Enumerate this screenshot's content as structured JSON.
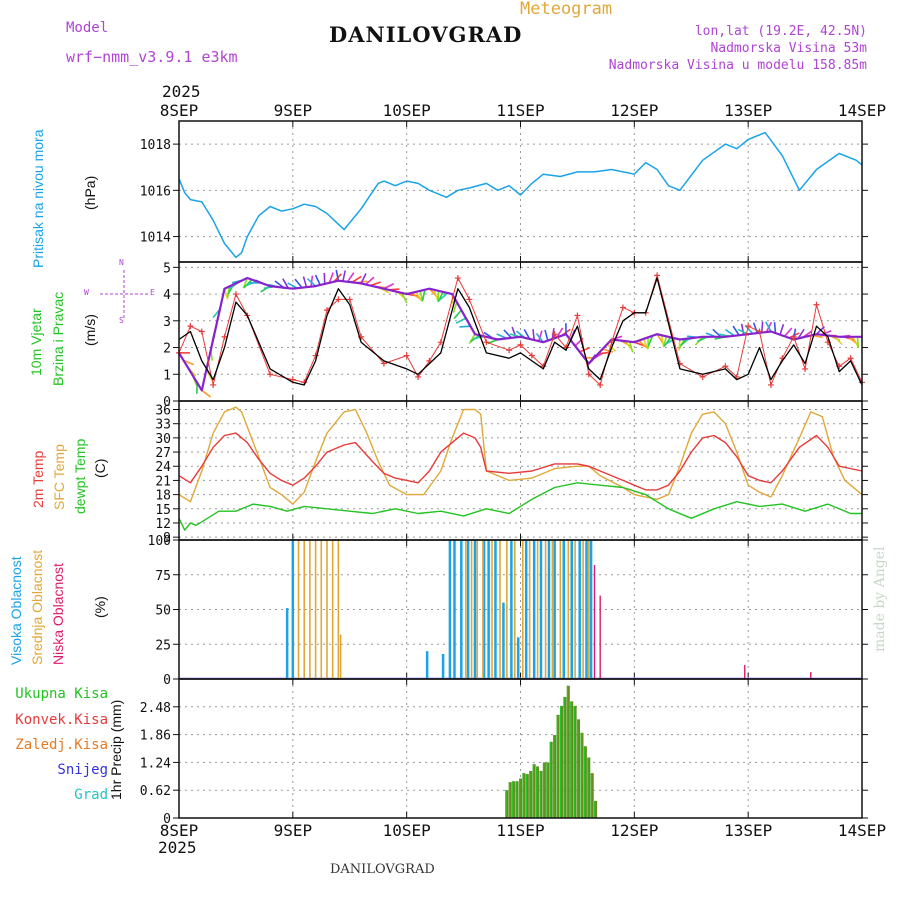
{
  "header": {
    "model_label": "Model",
    "model_name": "wrf−nmm_v3.9.1  e3km",
    "title": "DANILOVGRAD",
    "subtitle": "Meteogram",
    "lonlat": "lon,lat (19.2E, 42.5N)",
    "elevation": "Nadmorska Visina 53m",
    "model_elevation": "Nadmorska Visina u modelu 158.85m",
    "year_top": "2025",
    "year_bottom": "2025",
    "footer": "DANILOVGRAD",
    "credit": "made by Angel"
  },
  "colors": {
    "pressure": "#1aa3e8",
    "temp2m": "#e83a3a",
    "sfc": "#e0a838",
    "dewpt": "#22c322",
    "wind_avg": "#000000",
    "wind_gust": "#e83a3a",
    "wind_dir": "#8822cc",
    "high_cloud": "#1aa3e8",
    "mid_cloud": "#e0a838",
    "low_cloud": "#e01a6a",
    "total_precip": "#22c322",
    "conv_precip": "#e83a3a",
    "frozen_precip": "#e87a22",
    "snow": "#3333dd",
    "hail": "#22c3c3",
    "label_magenta": "#b044d4"
  },
  "x_ticks": [
    "8SEP",
    "9SEP",
    "10SEP",
    "11SEP",
    "12SEP",
    "13SEP",
    "14SEP"
  ],
  "panel_labels": {
    "pressure": [
      "Pritisak na nivou mora"
    ],
    "pressure_unit": "(hPa)",
    "wind": [
      "10m Vjetar",
      "Brzina i Pravac"
    ],
    "wind_unit": "(m/s)",
    "wind_dir_legend": [
      "W",
      "E",
      "N",
      "S"
    ],
    "temp": [
      "2m Temp",
      "SFC Temp",
      "dewpt Temp"
    ],
    "temp_unit": "(C)",
    "cloud": [
      "Visoka Oblacnost",
      "Srednja Oblacnost",
      "Niska Oblacnost"
    ],
    "cloud_unit": "(%)",
    "precip_legend": [
      "Ukupna Kisa",
      "Konvek.Kisa",
      "Zaledj.Kisa",
      "Snijeg",
      "Grad"
    ],
    "precip_unit": "1hr Precip (mm)"
  },
  "chart_data": [
    {
      "type": "line",
      "name": "pressure",
      "title": "Pritisak na nivou mora",
      "ylabel": "(hPa)",
      "ylim": [
        1012.9,
        1019.0
      ],
      "yticks": [
        1014,
        1016,
        1018
      ],
      "x_days": [
        0,
        0.05,
        0.1,
        0.2,
        0.3,
        0.4,
        0.5,
        0.55,
        0.6,
        0.7,
        0.8,
        0.9,
        1.0,
        1.1,
        1.2,
        1.3,
        1.45,
        1.6,
        1.75,
        1.8,
        1.9,
        2.0,
        2.1,
        2.2,
        2.35,
        2.45,
        2.55,
        2.7,
        2.8,
        2.9,
        3.0,
        3.1,
        3.2,
        3.35,
        3.5,
        3.65,
        3.8,
        4.0,
        4.1,
        4.2,
        4.3,
        4.4,
        4.6,
        4.8,
        4.9,
        5.0,
        5.15,
        5.3,
        5.45,
        5.6,
        5.8,
        5.95,
        6.0
      ],
      "values": [
        1016.5,
        1015.9,
        1015.6,
        1015.5,
        1014.7,
        1013.7,
        1013.1,
        1013.3,
        1014.0,
        1014.9,
        1015.3,
        1015.1,
        1015.2,
        1015.4,
        1015.3,
        1015.0,
        1014.3,
        1015.2,
        1016.3,
        1016.4,
        1016.2,
        1016.4,
        1016.3,
        1016.0,
        1015.7,
        1016.0,
        1016.1,
        1016.3,
        1016.0,
        1016.2,
        1015.8,
        1016.3,
        1016.7,
        1016.6,
        1016.8,
        1016.8,
        1016.9,
        1016.7,
        1017.2,
        1016.9,
        1016.2,
        1016.0,
        1017.3,
        1018.0,
        1017.8,
        1018.2,
        1018.5,
        1017.5,
        1016.0,
        1016.9,
        1017.6,
        1017.3,
        1017.1
      ]
    },
    {
      "type": "line",
      "name": "wind",
      "title": "10m Vjetar Brzina i Pravac",
      "ylabel": "(m/s)",
      "ylim": [
        0,
        5.2
      ],
      "yticks": [
        0,
        1,
        2,
        3,
        4,
        5
      ],
      "series": [
        {
          "name": "avg speed",
          "x_days": [
            0,
            0.1,
            0.2,
            0.3,
            0.4,
            0.5,
            0.6,
            0.8,
            1.0,
            1.1,
            1.2,
            1.3,
            1.4,
            1.5,
            1.6,
            1.8,
            2.0,
            2.1,
            2.2,
            2.3,
            2.45,
            2.55,
            2.7,
            2.9,
            3.0,
            3.1,
            3.2,
            3.3,
            3.4,
            3.5,
            3.6,
            3.7,
            3.8,
            3.9,
            4.0,
            4.1,
            4.2,
            4.4,
            4.6,
            4.8,
            4.9,
            5.0,
            5.1,
            5.2,
            5.3,
            5.4,
            5.5,
            5.6,
            5.7,
            5.8,
            5.9,
            6.0
          ],
          "values": [
            2.3,
            2.6,
            1.5,
            0.8,
            2.0,
            3.7,
            3.2,
            1.2,
            0.7,
            0.6,
            1.5,
            3.2,
            4.2,
            3.6,
            2.2,
            1.5,
            1.2,
            1.0,
            1.4,
            1.8,
            4.2,
            3.5,
            1.8,
            1.6,
            1.8,
            1.5,
            1.2,
            2.2,
            1.9,
            2.8,
            1.2,
            0.8,
            2.0,
            3.0,
            3.3,
            3.3,
            4.6,
            1.2,
            1.0,
            1.2,
            0.8,
            1.0,
            2.0,
            0.8,
            1.5,
            2.1,
            1.4,
            2.8,
            2.4,
            1.1,
            1.5,
            0.6
          ]
        },
        {
          "name": "gust",
          "x_days": [
            0,
            0.1,
            0.2,
            0.3,
            0.4,
            0.5,
            0.6,
            0.8,
            1.0,
            1.1,
            1.2,
            1.3,
            1.4,
            1.5,
            1.6,
            1.8,
            2.0,
            2.1,
            2.2,
            2.3,
            2.45,
            2.55,
            2.7,
            2.9,
            3.0,
            3.1,
            3.2,
            3.3,
            3.4,
            3.5,
            3.6,
            3.7,
            3.8,
            3.9,
            4.0,
            4.1,
            4.2,
            4.4,
            4.6,
            4.8,
            4.9,
            5.0,
            5.1,
            5.2,
            5.3,
            5.4,
            5.5,
            5.6,
            5.7,
            5.8,
            5.9,
            6.0
          ],
          "values": [
            1.8,
            2.8,
            2.6,
            0.6,
            2.4,
            4.0,
            3.2,
            1.0,
            0.8,
            0.7,
            1.7,
            3.4,
            3.8,
            3.8,
            2.4,
            1.4,
            1.7,
            0.9,
            1.5,
            2.2,
            4.6,
            3.8,
            2.2,
            1.9,
            2.1,
            1.7,
            1.3,
            2.5,
            2.0,
            3.2,
            1.0,
            0.6,
            2.2,
            3.5,
            3.3,
            3.3,
            4.7,
            1.4,
            0.9,
            1.3,
            0.9,
            2.8,
            2.6,
            0.6,
            1.6,
            2.4,
            1.2,
            3.6,
            2.2,
            1.3,
            1.6,
            0.7
          ]
        },
        {
          "name": "direction",
          "x_days": [
            0,
            0.2,
            0.4,
            0.6,
            0.8,
            1.0,
            1.2,
            1.4,
            1.6,
            1.8,
            2.0,
            2.2,
            2.4,
            2.6,
            2.8,
            3.0,
            3.2,
            3.4,
            3.6,
            3.8,
            4.0,
            4.2,
            4.4,
            4.6,
            4.8,
            5.0,
            5.2,
            5.4,
            5.6,
            5.8,
            6.0
          ],
          "values": [
            1.8,
            0.4,
            4.2,
            4.6,
            4.3,
            4.2,
            4.3,
            4.5,
            4.4,
            4.2,
            4.0,
            4.2,
            4.0,
            2.5,
            2.3,
            2.4,
            2.2,
            2.5,
            1.4,
            2.3,
            2.2,
            2.5,
            2.3,
            2.4,
            2.4,
            2.5,
            2.6,
            2.3,
            2.5,
            2.4,
            2.4
          ]
        }
      ]
    },
    {
      "type": "line",
      "name": "temperature",
      "title": "2m Temp / SFC Temp / dewpt Temp",
      "ylabel": "(C)",
      "ylim": [
        8.4,
        37.8
      ],
      "yticks": [
        9,
        12,
        15,
        18,
        21,
        24,
        27,
        30,
        33,
        36
      ],
      "series": [
        {
          "name": "2m Temp",
          "x_days": [
            0,
            0.1,
            0.2,
            0.3,
            0.4,
            0.5,
            0.6,
            0.7,
            0.8,
            0.9,
            1.0,
            1.1,
            1.2,
            1.3,
            1.45,
            1.55,
            1.7,
            1.8,
            1.9,
            2.0,
            2.1,
            2.2,
            2.3,
            2.4,
            2.5,
            2.6,
            2.65,
            2.7,
            2.9,
            3.1,
            3.3,
            3.5,
            3.6,
            3.7,
            3.9,
            4.0,
            4.1,
            4.2,
            4.3,
            4.4,
            4.5,
            4.6,
            4.7,
            4.8,
            4.9,
            5.0,
            5.1,
            5.2,
            5.3,
            5.45,
            5.6,
            5.7,
            5.8,
            6.0
          ],
          "values": [
            22,
            20.5,
            24,
            28,
            30.5,
            31,
            29,
            25.5,
            22.5,
            21,
            20,
            21.5,
            24,
            27,
            28.5,
            29,
            25,
            22.5,
            21.5,
            21,
            20.5,
            23,
            27,
            29,
            31,
            30,
            28,
            23,
            22.5,
            23,
            24.5,
            24.5,
            24,
            23,
            21,
            20,
            19,
            19,
            20,
            23,
            27,
            30,
            30.5,
            29,
            26,
            22,
            21,
            20.5,
            23,
            28,
            30.5,
            28,
            24,
            23
          ]
        },
        {
          "name": "SFC Temp",
          "x_days": [
            0,
            0.1,
            0.2,
            0.3,
            0.4,
            0.5,
            0.55,
            0.7,
            0.8,
            0.9,
            1.0,
            1.1,
            1.2,
            1.3,
            1.45,
            1.55,
            1.65,
            1.75,
            1.85,
            2.0,
            2.15,
            2.3,
            2.4,
            2.5,
            2.6,
            2.65,
            2.7,
            2.9,
            3.1,
            3.3,
            3.5,
            3.6,
            3.7,
            3.9,
            4.0,
            4.1,
            4.2,
            4.3,
            4.4,
            4.5,
            4.6,
            4.7,
            4.8,
            4.9,
            5.0,
            5.1,
            5.2,
            5.3,
            5.45,
            5.55,
            5.65,
            5.75,
            5.85,
            6.0
          ],
          "values": [
            18,
            16.5,
            23,
            31,
            35.5,
            36.5,
            35.5,
            26,
            19.5,
            18,
            16,
            18.5,
            25,
            31,
            35.5,
            36,
            31,
            25,
            20,
            18,
            18,
            23,
            30,
            36,
            36,
            35,
            23,
            21,
            21.5,
            23.5,
            24,
            24,
            22,
            19.5,
            18,
            17.5,
            17,
            18,
            24,
            31,
            35,
            35.5,
            33,
            27,
            20,
            18.5,
            17.5,
            22,
            30,
            35.5,
            34.5,
            26,
            21,
            18
          ]
        },
        {
          "name": "dewpt Temp",
          "x_days": [
            0,
            0.05,
            0.1,
            0.15,
            0.25,
            0.35,
            0.5,
            0.65,
            0.8,
            0.95,
            1.1,
            1.3,
            1.5,
            1.7,
            1.9,
            2.1,
            2.3,
            2.5,
            2.7,
            2.9,
            3.1,
            3.3,
            3.5,
            3.7,
            3.9,
            4.1,
            4.3,
            4.5,
            4.7,
            4.9,
            5.1,
            5.3,
            5.5,
            5.7,
            5.9,
            6.0
          ],
          "values": [
            13,
            10.5,
            12,
            11.5,
            13,
            14.5,
            14.5,
            16,
            15.5,
            14.5,
            15.5,
            15,
            14.5,
            14,
            15,
            14,
            14.5,
            13.5,
            15,
            14,
            17,
            19.5,
            20.5,
            20,
            19.5,
            18,
            15,
            13,
            15,
            16.5,
            15.5,
            16,
            14.5,
            16,
            14,
            14
          ]
        }
      ]
    },
    {
      "type": "bar",
      "name": "cloud cover",
      "title": "Visoka / Srednja / Niska Oblacnost",
      "ylabel": "(%)",
      "ylim": [
        0,
        100
      ],
      "yticks": [
        0,
        25,
        50,
        75,
        100
      ],
      "series": [
        {
          "name": "Visoka Oblacnost",
          "x_days": [
            0.95,
            1.0,
            2.18,
            2.32,
            2.38,
            2.42,
            2.48,
            2.54,
            2.6,
            2.68,
            2.72,
            2.78,
            2.85,
            2.92,
            2.98,
            3.05,
            3.12,
            3.18,
            3.25,
            3.3,
            3.38,
            3.45,
            3.52,
            3.58,
            3.62
          ],
          "values": [
            51,
            100,
            20,
            18,
            100,
            100,
            100,
            100,
            100,
            100,
            100,
            100,
            55,
            100,
            30,
            100,
            100,
            100,
            100,
            100,
            100,
            100,
            100,
            100,
            100
          ]
        },
        {
          "name": "Srednja Oblacnost",
          "x_days": [
            1.05,
            1.1,
            1.15,
            1.2,
            1.25,
            1.3,
            1.35,
            1.4,
            1.42,
            2.52,
            2.57,
            2.62,
            2.67,
            2.75,
            2.82,
            2.88,
            2.95,
            3.02,
            3.08,
            3.15,
            3.22,
            3.28,
            3.35,
            3.42,
            3.48,
            3.55,
            3.6
          ],
          "values": [
            100,
            100,
            100,
            100,
            100,
            100,
            100,
            100,
            32,
            100,
            100,
            100,
            100,
            100,
            100,
            100,
            100,
            100,
            100,
            100,
            100,
            100,
            100,
            100,
            100,
            100,
            100
          ]
        },
        {
          "name": "Niska Oblacnost",
          "x_days": [
            3.65,
            3.7,
            4.97,
            5.55
          ],
          "values": [
            82,
            60,
            10,
            5
          ]
        }
      ]
    },
    {
      "type": "bar",
      "name": "precipitation",
      "title": "1hr Precip",
      "ylabel": "1hr Precip (mm)",
      "ylim": [
        0,
        3.1
      ],
      "yticks": [
        0,
        0.62,
        1.24,
        1.86,
        2.48
      ],
      "series": [
        {
          "name": "Ukupna Kisa",
          "x_days": [
            2.88,
            2.91,
            2.94,
            2.97,
            3.0,
            3.03,
            3.06,
            3.09,
            3.12,
            3.15,
            3.18,
            3.21,
            3.24,
            3.27,
            3.3,
            3.33,
            3.36,
            3.39,
            3.42,
            3.45,
            3.48,
            3.51,
            3.54,
            3.57,
            3.6,
            3.63,
            3.66
          ],
          "values": [
            0.62,
            0.8,
            0.82,
            0.82,
            0.88,
            1.0,
            0.98,
            1.05,
            1.2,
            1.15,
            1.05,
            1.24,
            1.24,
            1.7,
            1.85,
            2.3,
            2.5,
            2.7,
            2.95,
            2.6,
            2.5,
            2.2,
            1.9,
            1.6,
            1.35,
            1.0,
            0.38
          ]
        }
      ]
    }
  ]
}
